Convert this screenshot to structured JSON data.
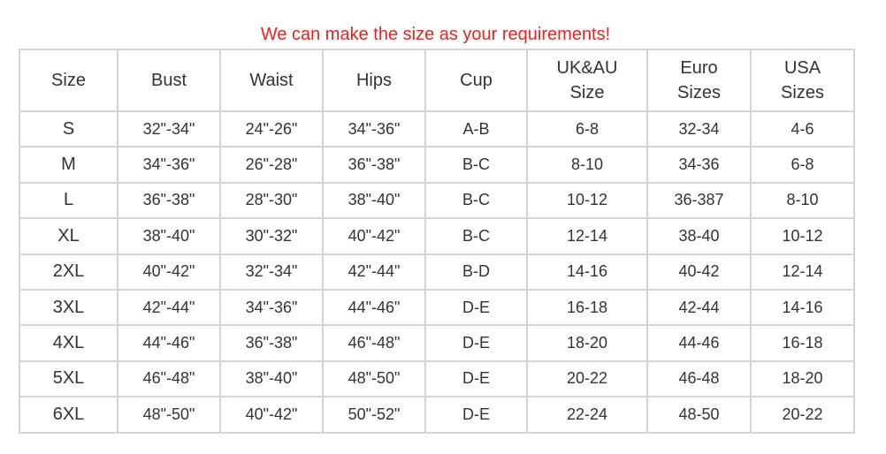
{
  "title": "We can make the size as your requirements!",
  "table": {
    "headers": [
      "Size",
      "Bust",
      "Waist",
      "Hips",
      "Cup",
      "UK&AU\nSize",
      "Euro\nSizes",
      "USA\nSizes"
    ],
    "rows": [
      [
        "S",
        "32\"-34\"",
        "24\"-26\"",
        "34\"-36\"",
        "A-B",
        "6-8",
        "32-34",
        "4-6"
      ],
      [
        "M",
        "34\"-36\"",
        "26\"-28\"",
        "36\"-38\"",
        "B-C",
        "8-10",
        "34-36",
        "6-8"
      ],
      [
        "L",
        "36\"-38\"",
        "28\"-30\"",
        "38\"-40\"",
        "B-C",
        "10-12",
        "36-387",
        "8-10"
      ],
      [
        "XL",
        "38\"-40\"",
        "30\"-32\"",
        "40\"-42\"",
        "B-C",
        "12-14",
        "38-40",
        "10-12"
      ],
      [
        "2XL",
        "40\"-42\"",
        "32\"-34\"",
        "42\"-44\"",
        "B-D",
        "14-16",
        "40-42",
        "12-14"
      ],
      [
        "3XL",
        "42\"-44\"",
        "34\"-36\"",
        "44\"-46\"",
        "D-E",
        "16-18",
        "42-44",
        "14-16"
      ],
      [
        "4XL",
        "44\"-46\"",
        "36\"-38\"",
        "46\"-48\"",
        "D-E",
        "18-20",
        "44-46",
        "16-18"
      ],
      [
        "5XL",
        "46\"-48\"",
        "38\"-40\"",
        "48\"-50\"",
        "D-E",
        "20-22",
        "46-48",
        "18-20"
      ],
      [
        "6XL",
        "48\"-50\"",
        "40\"-42\"",
        "50\"-52\"",
        "D-E",
        "22-24",
        "48-50",
        "20-22"
      ]
    ]
  },
  "colors": {
    "title": "#f21d1d",
    "text": "#333333",
    "border": "#d4d4d4"
  }
}
